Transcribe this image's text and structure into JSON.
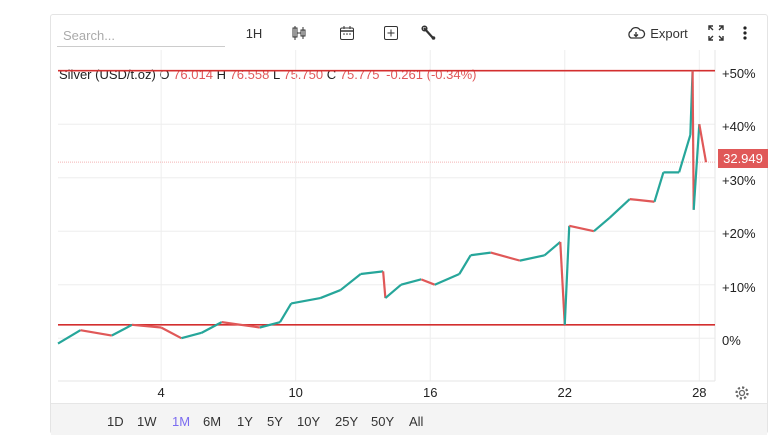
{
  "toolbar": {
    "search_placeholder": "Search...",
    "interval": "1H",
    "export_label": "Export"
  },
  "legend": {
    "symbol": "Silver (USD/t.oz)",
    "o_label": "O",
    "open": "76.014",
    "h_label": "H",
    "high": "76.558",
    "l_label": "L",
    "low": "75.750",
    "c_label": "C",
    "close": "75.775",
    "change": "-0.261 (-0.34%)"
  },
  "price_tag": "32.949",
  "colors": {
    "up": "#26a69a",
    "down": "#e05858",
    "hline": "#d32f2f",
    "active_range": "#7b6cf0"
  },
  "chart_data": {
    "type": "candlestick",
    "y_unit": "percent change",
    "ylim": [
      -8,
      52
    ],
    "y_ticks": [
      "0%",
      "+10%",
      "+20%",
      "+30%",
      "+40%",
      "+50%"
    ],
    "y_tick_values": [
      0,
      10,
      20,
      30,
      40,
      50
    ],
    "x_ticks": [
      "4",
      "10",
      "16",
      "22",
      "28"
    ],
    "x_tick_values": [
      4,
      10,
      16,
      22,
      28
    ],
    "xlim": [
      -0.6,
      28.7
    ],
    "horizontal_lines": [
      50,
      2.5
    ],
    "last_value_pct": 32.9,
    "series": [
      [
        -0.6,
        -1
      ],
      [
        0.4,
        1.5
      ],
      [
        1.8,
        0.5
      ],
      [
        2.7,
        2.5
      ],
      [
        4,
        2
      ],
      [
        4.9,
        0
      ],
      [
        5.8,
        1
      ],
      [
        6.7,
        3
      ],
      [
        8.4,
        2
      ],
      [
        9.3,
        3
      ],
      [
        9.8,
        6.5
      ],
      [
        11.1,
        7.5
      ],
      [
        12,
        9
      ],
      [
        12.9,
        12
      ],
      [
        13.9,
        12.5
      ],
      [
        14,
        7.5
      ],
      [
        14.7,
        10
      ],
      [
        15.6,
        11
      ],
      [
        16.2,
        10
      ],
      [
        17.3,
        12
      ],
      [
        17.8,
        15.5
      ],
      [
        18.7,
        16
      ],
      [
        20,
        14.5
      ],
      [
        21.1,
        15.5
      ],
      [
        21.8,
        18
      ],
      [
        22,
        2.5
      ],
      [
        22.2,
        21
      ],
      [
        23.3,
        20
      ],
      [
        24,
        22.5
      ],
      [
        24.9,
        26
      ],
      [
        26,
        25.5
      ],
      [
        26.4,
        31
      ],
      [
        27.1,
        31
      ],
      [
        27.6,
        38
      ],
      [
        27.7,
        50
      ],
      [
        27.75,
        24
      ],
      [
        28,
        40
      ],
      [
        28.3,
        32.9
      ]
    ]
  },
  "range_buttons": [
    "1D",
    "1W",
    "1M",
    "6M",
    "1Y",
    "5Y",
    "10Y",
    "25Y",
    "50Y",
    "All"
  ],
  "active_range": "1M"
}
